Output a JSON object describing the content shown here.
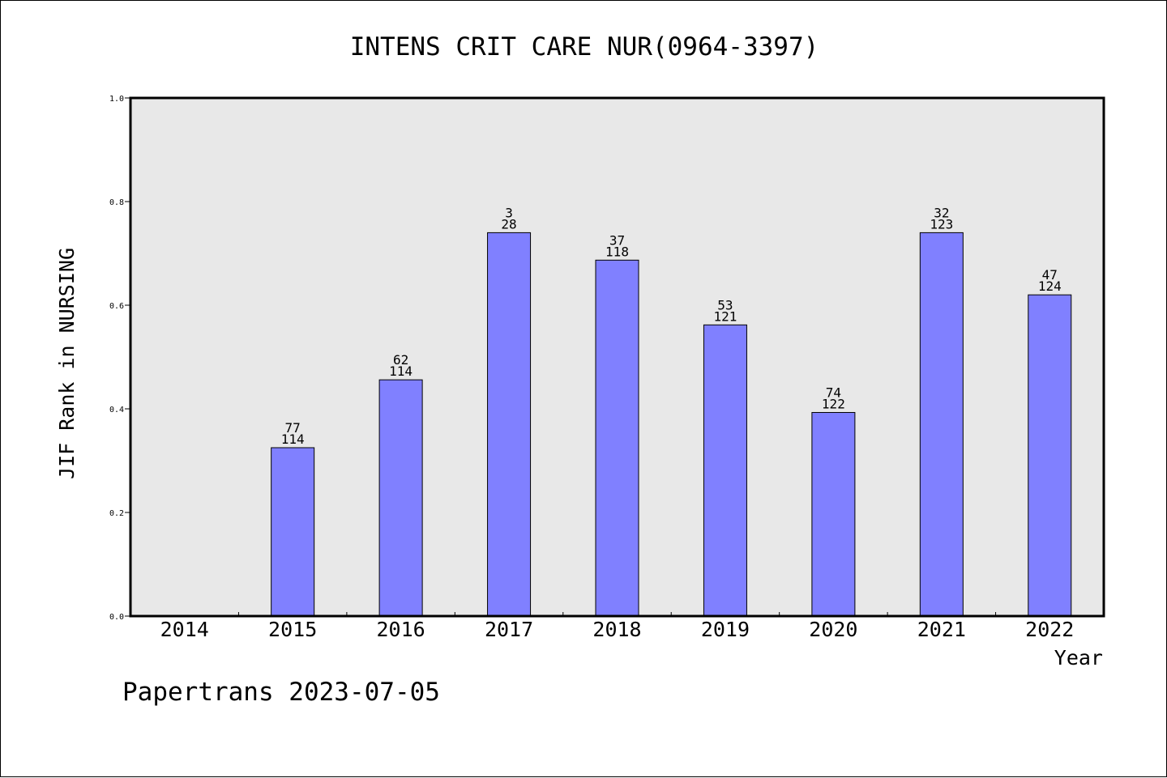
{
  "chart_data": {
    "type": "bar",
    "title": "INTENS CRIT CARE NUR(0964-3397)",
    "xlabel": "Year",
    "ylabel": "JIF Rank in NURSING",
    "ylim": [
      0.0,
      1.0
    ],
    "yticks": [
      "0.0",
      "0.2",
      "0.4",
      "0.6",
      "0.8",
      "1.0"
    ],
    "ytick_values": [
      0.0,
      0.2,
      0.4,
      0.6,
      0.8,
      1.0
    ],
    "categories": [
      "2014",
      "2015",
      "2016",
      "2017",
      "2018",
      "2019",
      "2020",
      "2021",
      "2022"
    ],
    "values": [
      null,
      0.325,
      0.456,
      0.74,
      0.687,
      0.562,
      0.393,
      0.74,
      0.62
    ],
    "labels_top": [
      "",
      "77",
      "62",
      "3",
      "37",
      "53",
      "74",
      "32",
      "47"
    ],
    "labels_bottom": [
      "",
      "114",
      "114",
      "28",
      "118",
      "121",
      "122",
      "123",
      "124"
    ],
    "bar_color": "#8080ff",
    "plot_background": "#e8e8e8",
    "grid": false,
    "legend": "none"
  },
  "footer": {
    "text": "Papertrans 2023-07-05"
  }
}
